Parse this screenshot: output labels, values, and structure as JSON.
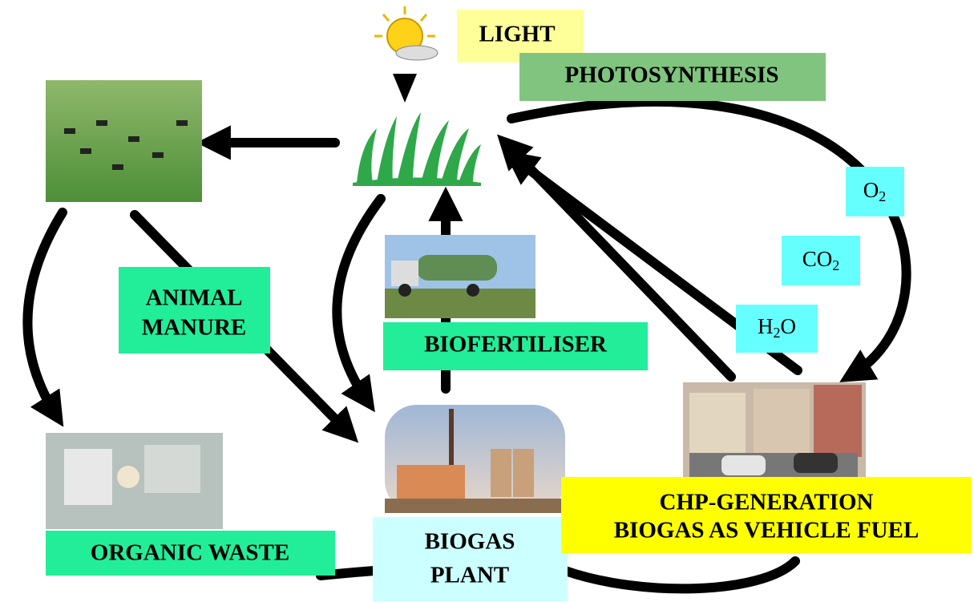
{
  "labels": {
    "light": "LIGHT",
    "photosynthesis": "PHOTOSYNTHESIS",
    "animal_manure": [
      "ANIMAL",
      "MANURE"
    ],
    "biofertiliser": "BIOFERTILISER",
    "organic_waste": "ORGANIC WASTE",
    "biogas_plant": [
      "BIOGAS",
      "PLANT"
    ],
    "chp": [
      "CHP-GENERATION",
      "BIOGAS AS VEHICLE FUEL"
    ],
    "gases": [
      {
        "main": "O",
        "sub": "2"
      },
      {
        "main": "CO",
        "sub": "2"
      },
      {
        "main": "H",
        "sub": "2",
        "tail": "O"
      }
    ]
  }
}
